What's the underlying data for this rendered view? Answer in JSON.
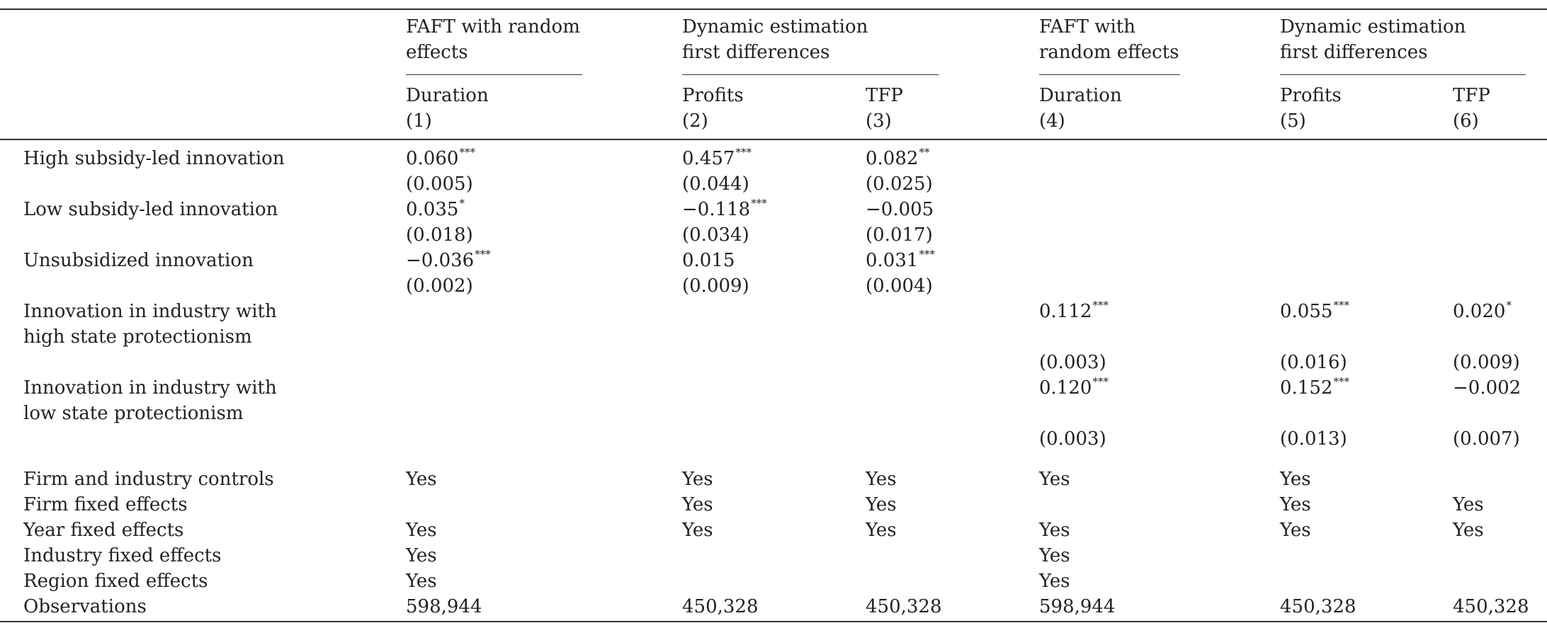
{
  "group_headers": [
    {
      "lines": [
        "FAFT with random",
        "effects"
      ]
    },
    {
      "lines": [
        "Dynamic estimation",
        "first differences"
      ]
    },
    {
      "lines": [
        "FAFT with",
        "random effects"
      ]
    },
    {
      "lines": [
        "Dynamic estimation",
        "first differences"
      ]
    }
  ],
  "columns": [
    {
      "label": "Duration",
      "num": "(1)"
    },
    {
      "label": "Profits",
      "num": "(2)"
    },
    {
      "label": "TFP",
      "num": "(3)"
    },
    {
      "label": "Duration",
      "num": "(4)"
    },
    {
      "label": "Profits",
      "num": "(5)"
    },
    {
      "label": "TFP",
      "num": "(6)"
    }
  ],
  "rows": [
    {
      "label": "High subsidy-led innovation",
      "coefs": [
        {
          "v": "0.060",
          "s": "***"
        },
        {
          "v": "0.457",
          "s": "***"
        },
        {
          "v": "0.082",
          "s": "**"
        },
        {
          "v": "",
          "s": ""
        },
        {
          "v": "",
          "s": ""
        },
        {
          "v": "",
          "s": ""
        }
      ],
      "ses": [
        "(0.005)",
        "(0.044)",
        "(0.025)",
        "",
        "",
        ""
      ]
    },
    {
      "label": "Low subsidy-led innovation",
      "coefs": [
        {
          "v": "0.035",
          "s": "*"
        },
        {
          "v": "−0.118",
          "s": "***"
        },
        {
          "v": "−0.005",
          "s": ""
        },
        {
          "v": "",
          "s": ""
        },
        {
          "v": "",
          "s": ""
        },
        {
          "v": "",
          "s": ""
        }
      ],
      "ses": [
        "(0.018)",
        "(0.034)",
        "(0.017)",
        "",
        "",
        ""
      ]
    },
    {
      "label": "Unsubsidized innovation",
      "coefs": [
        {
          "v": "−0.036",
          "s": "***"
        },
        {
          "v": "0.015",
          "s": ""
        },
        {
          "v": "0.031",
          "s": "***"
        },
        {
          "v": "",
          "s": ""
        },
        {
          "v": "",
          "s": ""
        },
        {
          "v": "",
          "s": ""
        }
      ],
      "ses": [
        "(0.002)",
        "(0.009)",
        "(0.004)",
        "",
        "",
        ""
      ]
    },
    {
      "label": [
        "Innovation in industry with",
        "high state protectionism"
      ],
      "coefs": [
        {
          "v": "",
          "s": ""
        },
        {
          "v": "",
          "s": ""
        },
        {
          "v": "",
          "s": ""
        },
        {
          "v": "0.112",
          "s": "***"
        },
        {
          "v": "0.055",
          "s": "***"
        },
        {
          "v": "0.020",
          "s": "*"
        }
      ],
      "ses": [
        "",
        "",
        "",
        "(0.003)",
        "(0.016)",
        "(0.009)"
      ]
    },
    {
      "label": [
        "Innovation in industry with",
        "low state protectionism"
      ],
      "coefs": [
        {
          "v": "",
          "s": ""
        },
        {
          "v": "",
          "s": ""
        },
        {
          "v": "",
          "s": ""
        },
        {
          "v": "0.120",
          "s": "***"
        },
        {
          "v": "0.152",
          "s": "***"
        },
        {
          "v": "−0.002",
          "s": ""
        }
      ],
      "ses": [
        "",
        "",
        "",
        "(0.003)",
        "(0.013)",
        "(0.007)"
      ]
    }
  ],
  "controls": [
    {
      "label": "Firm and industry controls",
      "vals": [
        "Yes",
        "Yes",
        "Yes",
        "Yes",
        "Yes",
        ""
      ]
    },
    {
      "label": "Firm fixed effects",
      "vals": [
        "",
        "Yes",
        "Yes",
        "",
        "Yes",
        "Yes"
      ]
    },
    {
      "label": "Year fixed effects",
      "vals": [
        "Yes",
        "Yes",
        "Yes",
        "Yes",
        "Yes",
        "Yes"
      ]
    },
    {
      "label": "Industry fixed effects",
      "vals": [
        "Yes",
        "",
        "",
        "Yes",
        "",
        ""
      ]
    },
    {
      "label": "Region fixed effects",
      "vals": [
        "Yes",
        "",
        "",
        "Yes",
        "",
        ""
      ]
    },
    {
      "label": "Observations",
      "vals": [
        "598,944",
        "450,328",
        "450,328",
        "598,944",
        "450,328",
        "450,328"
      ]
    }
  ]
}
